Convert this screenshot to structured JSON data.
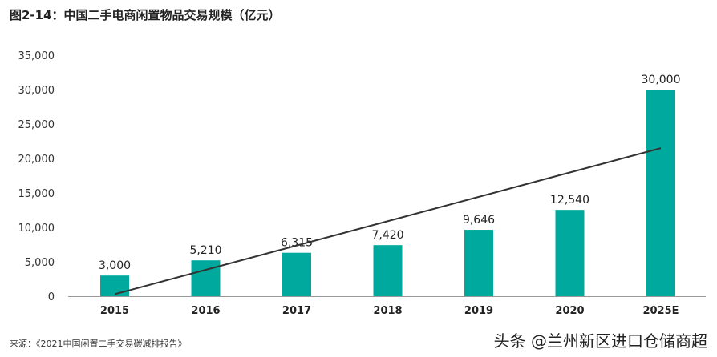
{
  "chart_data": {
    "type": "bar",
    "title": "图2-14：中国二手电商闲置物品交易规模（亿元）",
    "categories": [
      "2015",
      "2016",
      "2017",
      "2018",
      "2019",
      "2020",
      "2025E"
    ],
    "values": [
      3000,
      5210,
      6315,
      7420,
      9646,
      12540,
      30000
    ],
    "data_labels": [
      "3,000",
      "5,210",
      "6,315",
      "7,420",
      "9,646",
      "12,540",
      "30,000"
    ],
    "yticks": [
      "0",
      "5,000",
      "10,000",
      "15,000",
      "20,000",
      "25,000",
      "30,000",
      "35,000"
    ],
    "ylim": [
      0,
      35000
    ],
    "grid": false,
    "bar_color": "#00A99D",
    "trendline": {
      "type": "linear",
      "start": 300,
      "end": 21500,
      "color": "#333333"
    }
  },
  "source": "来源：《2021中国闲置二手交易碳减排报告》",
  "watermark": "头条 @兰州新区进口仓储商超"
}
